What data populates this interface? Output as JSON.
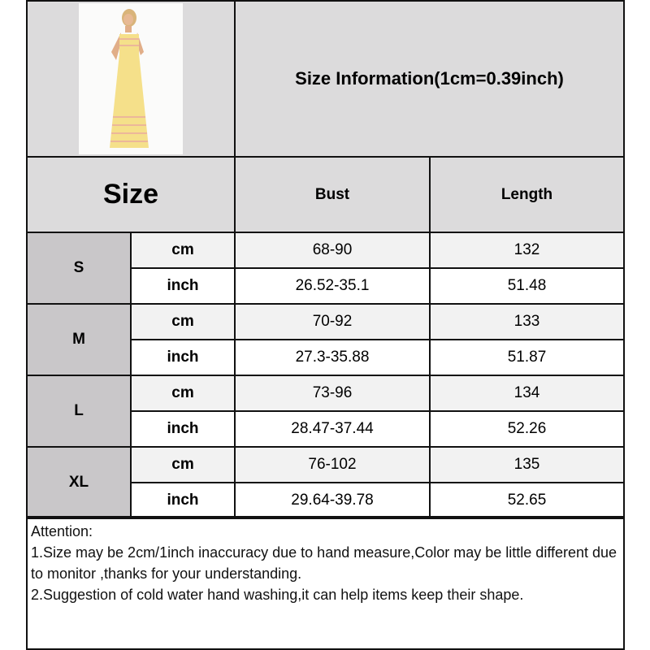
{
  "title": "Size Information(1cm=0.39inch)",
  "header": {
    "size": "Size",
    "bust": "Bust",
    "length": "Length"
  },
  "rows": [
    {
      "size": "S",
      "cm": {
        "unit": "cm",
        "bust": "68-90",
        "length": "132"
      },
      "inch": {
        "unit": "inch",
        "bust": "26.52-35.1",
        "length": "51.48"
      }
    },
    {
      "size": "M",
      "cm": {
        "unit": "cm",
        "bust": "70-92",
        "length": "133"
      },
      "inch": {
        "unit": "inch",
        "bust": "27.3-35.88",
        "length": "51.87"
      }
    },
    {
      "size": "L",
      "cm": {
        "unit": "cm",
        "bust": "73-96",
        "length": "134"
      },
      "inch": {
        "unit": "inch",
        "bust": "28.47-37.44",
        "length": "52.26"
      }
    },
    {
      "size": "XL",
      "cm": {
        "unit": "cm",
        "bust": "76-102",
        "length": "135"
      },
      "inch": {
        "unit": "inch",
        "bust": "29.64-39.78",
        "length": "52.65"
      }
    }
  ],
  "attention": {
    "heading": "Attention:",
    "line1": "1.Size may be 2cm/1inch inaccuracy due to hand measure,Color may be little different due to monitor ,thanks for your understanding.",
    "line2": "2.Suggestion of cold water hand washing,it can help items keep their shape."
  },
  "colors": {
    "header_bg": "#dcdbdc",
    "size_bg": "#c9c7c9",
    "cm_row_bg": "#f2f2f2"
  }
}
